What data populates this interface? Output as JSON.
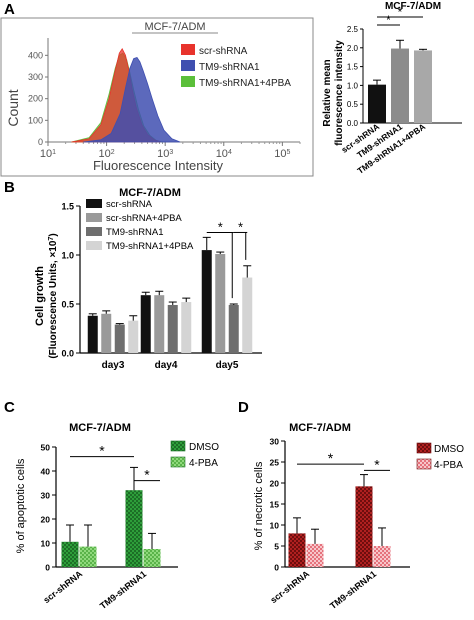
{
  "figure": {
    "panel_letters": [
      "A",
      "B",
      "C",
      "D"
    ],
    "significance_mark": "*"
  },
  "chart_data": [
    {
      "id": "A1",
      "type": "area",
      "title": "MCF-7/ADM",
      "xlabel": "Fluorescence Intensity",
      "ylabel": "Count",
      "x_scale": "log",
      "xlim": [
        10,
        200000
      ],
      "ylim": [
        0,
        480
      ],
      "x_ticks": [
        {
          "base": "10",
          "exp": "1",
          "value": 10
        },
        {
          "base": "10",
          "exp": "2",
          "value": 100
        },
        {
          "base": "10",
          "exp": "3",
          "value": 1000
        },
        {
          "base": "10",
          "exp": "4",
          "value": 10000
        },
        {
          "base": "10",
          "exp": "5",
          "value": 100000
        }
      ],
      "y_ticks": [
        0,
        100,
        200,
        300,
        400
      ],
      "y_tick_labels": [
        "0",
        "100",
        "200",
        "300",
        "400"
      ],
      "series": [
        {
          "name": "scr-shRNA",
          "color": "#e8332c",
          "x": [
            25,
            50,
            80,
            110,
            140,
            165,
            185,
            210,
            240,
            270,
            320,
            400,
            500,
            650,
            850
          ],
          "y": [
            0,
            15,
            80,
            200,
            330,
            410,
            430,
            400,
            330,
            250,
            160,
            80,
            35,
            10,
            0
          ]
        },
        {
          "name": "TM9-shRNA1",
          "color": "#3f4fb0",
          "x": [
            40,
            80,
            120,
            170,
            210,
            250,
            290,
            330,
            370,
            420,
            500,
            600,
            750,
            950,
            1300,
            1800
          ],
          "y": [
            0,
            10,
            40,
            130,
            250,
            340,
            385,
            390,
            370,
            330,
            270,
            200,
            120,
            55,
            15,
            0
          ]
        },
        {
          "name": "TM9-shRNA1+4PBA",
          "color": "#5bbf3a",
          "x": [
            25,
            50,
            80,
            110,
            140,
            165,
            190,
            220,
            250,
            290,
            350,
            430,
            550,
            700,
            900
          ],
          "y": [
            0,
            20,
            90,
            220,
            340,
            400,
            410,
            380,
            320,
            240,
            150,
            75,
            30,
            8,
            0
          ]
        }
      ],
      "legend_position": "top-right"
    },
    {
      "id": "A2",
      "type": "bar",
      "title": "MCF-7/ADM",
      "ylabel": "Relative mean\nfluorescence intensity",
      "categories": [
        "scr-shRNA",
        "TM9-shRNA1",
        "TM9-shRNA1+4PBA"
      ],
      "values": [
        1.02,
        1.98,
        1.93
      ],
      "errors": [
        0.12,
        0.22,
        0.03
      ],
      "colors": [
        "#111111",
        "#8c8c8c",
        "#a8a8a8"
      ],
      "ylim": [
        0,
        2.5
      ],
      "y_ticks": [
        0,
        0.5,
        1.0,
        1.5,
        2.0,
        2.5
      ],
      "y_tick_labels": [
        "0.0",
        "0.5",
        "1.0",
        "1.5",
        "2.0",
        "2.5"
      ],
      "significance": [
        {
          "from": 0,
          "to": 1,
          "level": 0
        },
        {
          "from": 0,
          "to": 2,
          "level": 1
        }
      ]
    },
    {
      "id": "B",
      "type": "bar",
      "title": "MCF-7/ADM",
      "ylabel": "Cell growth",
      "ylabel2_prefix": "(Fluorescence Units, ×10",
      "ylabel2_exp": "7",
      "ylabel2_suffix": ")",
      "categories": [
        "day3",
        "day4",
        "day5"
      ],
      "ylim": [
        0,
        1.5
      ],
      "y_ticks": [
        0,
        0.5,
        1.0,
        1.5
      ],
      "y_tick_labels": [
        "0.0",
        "0.5",
        "1.0",
        "1.5"
      ],
      "series": [
        {
          "name": "scr-shRNA",
          "color": "#111111",
          "values": [
            0.38,
            0.59,
            1.05
          ],
          "errors": [
            0.02,
            0.03,
            0.13
          ]
        },
        {
          "name": "scr-shRNA+4PBA",
          "color": "#9a9a9a",
          "values": [
            0.4,
            0.59,
            1.01
          ],
          "errors": [
            0.03,
            0.04,
            0.02
          ]
        },
        {
          "name": "TM9-shRNA1",
          "color": "#6e6e6e",
          "values": [
            0.29,
            0.49,
            0.49
          ],
          "errors": [
            0.01,
            0.03,
            0.01
          ]
        },
        {
          "name": "TM9-shRNA1+4PBA",
          "color": "#d4d4d4",
          "values": [
            0.33,
            0.52,
            0.77
          ],
          "errors": [
            0.05,
            0.04,
            0.12
          ]
        }
      ],
      "significance": [
        {
          "category": 2,
          "from": 0,
          "to": 2,
          "y": 1.23
        },
        {
          "category": 2,
          "from": 2,
          "to": 3,
          "y": 1.23
        }
      ],
      "legend_position": "top-left"
    },
    {
      "id": "C",
      "type": "bar",
      "title": "MCF-7/ADM",
      "ylabel": "% of apoptotic cells",
      "categories": [
        "scr-shRNA",
        "TM9-shRNA1"
      ],
      "ylim": [
        0,
        50
      ],
      "y_ticks": [
        0,
        10,
        20,
        30,
        40,
        50
      ],
      "y_tick_labels": [
        "0",
        "10",
        "20",
        "30",
        "40",
        "50"
      ],
      "series": [
        {
          "name": "DMSO",
          "color": "#2e9e3a",
          "values": [
            10.5,
            32
          ],
          "errors": [
            7,
            9.5
          ]
        },
        {
          "name": "4-PBA",
          "color": "#7ed06c",
          "values": [
            8.5,
            7.5
          ],
          "errors": [
            9,
            6.5
          ]
        }
      ],
      "significance": [
        {
          "kind": "groups",
          "from_category": 0,
          "to_category": 1,
          "y": 46
        },
        {
          "kind": "within",
          "category": 1,
          "y": 36
        }
      ],
      "legend_position": "top-right"
    },
    {
      "id": "D",
      "type": "bar",
      "title": "MCF-7/ADM",
      "ylabel": "% of necrotic cells",
      "categories": [
        "scr-shRNA",
        "TM9-shRNA1"
      ],
      "ylim": [
        0,
        30
      ],
      "y_ticks": [
        0,
        5,
        10,
        15,
        20,
        25,
        30
      ],
      "y_tick_labels": [
        "0",
        "5",
        "10",
        "15",
        "20",
        "25",
        "30"
      ],
      "series": [
        {
          "name": "DMSO",
          "color": "#a11a1a",
          "values": [
            8,
            19.2
          ],
          "errors": [
            3.7,
            2.8
          ]
        },
        {
          "name": "4-PBA",
          "color": "#f0a0a6",
          "values": [
            5.5,
            5
          ],
          "errors": [
            3.5,
            4.3
          ]
        }
      ],
      "significance": [
        {
          "kind": "groups",
          "from_category": 0,
          "to_category": 1,
          "y": 24.5
        },
        {
          "kind": "within",
          "category": 1,
          "y": 23
        }
      ],
      "legend_position": "top-right"
    }
  ]
}
